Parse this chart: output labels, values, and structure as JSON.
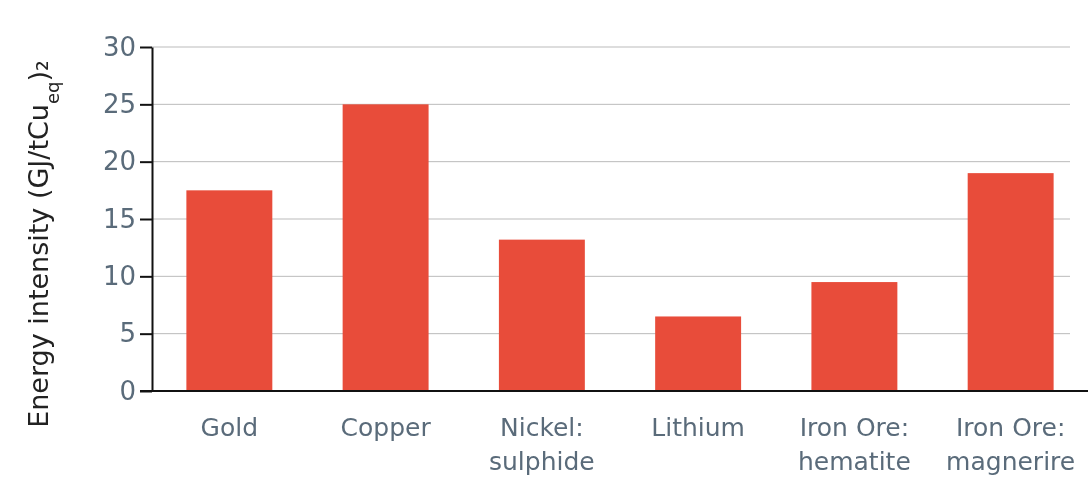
{
  "chart_data": {
    "type": "bar",
    "ylabel": "Energy intensity (GJ/tCu$_{eq}$)₂",
    "categories": [
      "Gold",
      "Copper",
      "Nickel: sulphide",
      "Lithium",
      "Iron Ore: hematite",
      "Iron Ore: magnerire"
    ],
    "values": [
      17.5,
      25,
      13.2,
      6.5,
      9.5,
      19
    ],
    "color": "#e84c3a",
    "ylim": [
      0,
      30
    ],
    "yticks": [
      0,
      5,
      10,
      15,
      20,
      25,
      30
    ],
    "grid": "y"
  }
}
